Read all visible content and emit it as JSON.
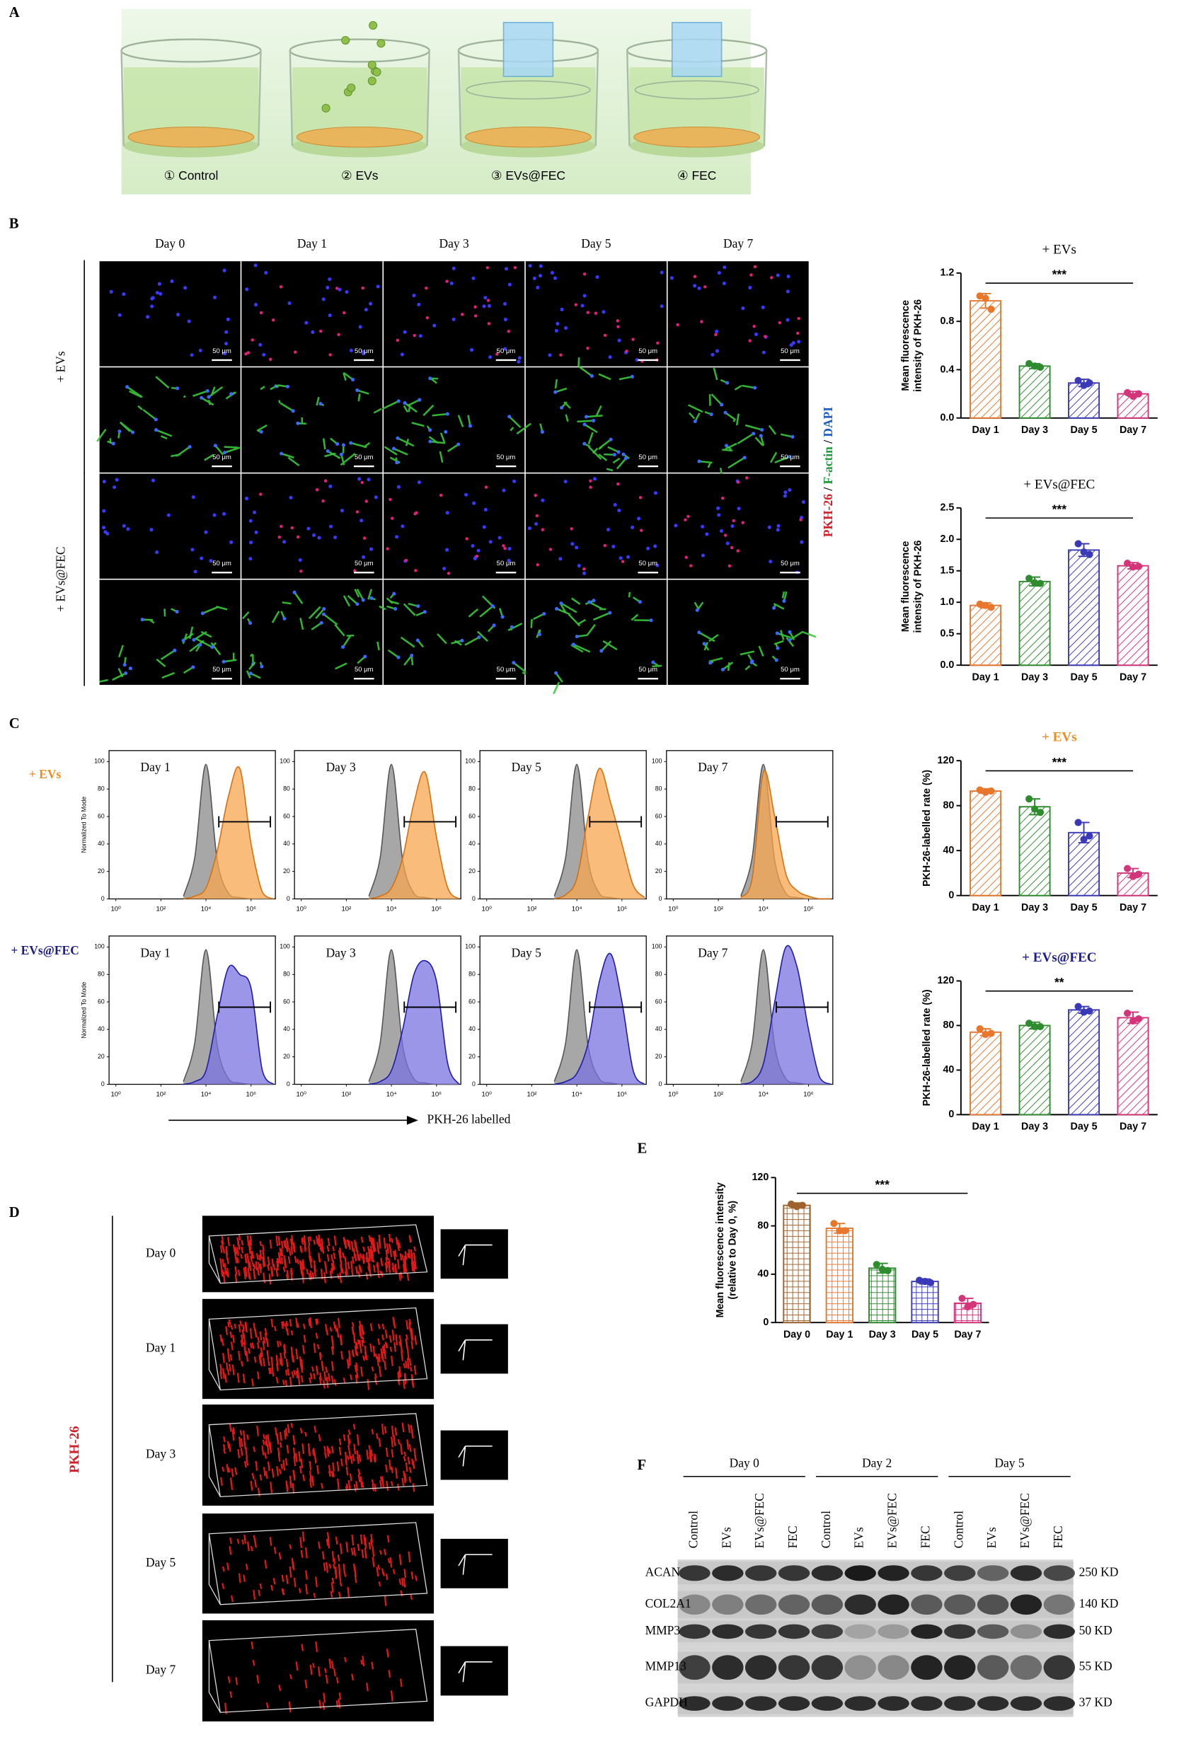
{
  "panel_labels": [
    "A",
    "B",
    "C",
    "D",
    "E",
    "F"
  ],
  "panel_a": {
    "groups": [
      "① Control",
      "② EVs",
      "③ EVs@FEC",
      "④ FEC"
    ]
  },
  "panel_b": {
    "days": [
      "Day 0",
      "Day 1",
      "Day 3",
      "Day 5",
      "Day 7"
    ],
    "rows": [
      "+ EVs",
      "+ EVs@FEC"
    ],
    "stain": [
      "PKH-26",
      "F-actin",
      "DAPI"
    ],
    "separator": " / ",
    "scale_bar": "50 μm"
  },
  "panel_c": {
    "rows": [
      "+ EVs",
      "+ EVs@FEC"
    ],
    "x_axis_label": "PKH-26 labelled"
  },
  "panel_d": {
    "label": "PKH-26",
    "days": [
      "Day 0",
      "Day 1",
      "Day 3",
      "Day 5",
      "Day 7"
    ]
  },
  "panel_f": {
    "groups": [
      "Day 0",
      "Day 2",
      "Day 5"
    ],
    "lanes": [
      "Control",
      "EVs",
      "EVs@FEC",
      "FEC"
    ],
    "proteins": [
      "ACAN",
      "COL2A1",
      "MMP3",
      "MMP13",
      "GAPDH"
    ],
    "sizes": [
      "250 KD",
      "140 KD",
      "50 KD",
      "55 KD",
      "37 KD"
    ]
  },
  "chart_data": [
    {
      "type": "bar",
      "title": "+ EVs",
      "title_color": "#000000",
      "y_label": [
        "Mean fluorescence",
        "intensity of PKH-26"
      ],
      "categories": [
        "Day 1",
        "Day 3",
        "Day 5",
        "Day 7"
      ],
      "values": [
        0.97,
        0.43,
        0.29,
        0.2
      ],
      "errors": [
        0.06,
        0.02,
        0.03,
        0.02
      ],
      "points": [
        [
          1.01,
          0.99,
          0.9
        ],
        [
          0.45,
          0.43,
          0.42
        ],
        [
          0.31,
          0.27,
          0.29
        ],
        [
          0.21,
          0.18,
          0.2
        ]
      ],
      "colors": [
        "#e8772e",
        "#2e8b2e",
        "#3a3ab8",
        "#d4347a"
      ],
      "ylim": [
        0,
        1.2
      ],
      "yticks": [
        {
          "value": 0,
          "label": "0.0"
        },
        0.4,
        0.8,
        1.2
      ],
      "significance": "***"
    },
    {
      "type": "bar",
      "title": "+ EVs@FEC",
      "title_color": "#000000",
      "y_label": [
        "Mean fluorescence",
        "intensity of PKH-26"
      ],
      "categories": [
        "Day 1",
        "Day 3",
        "Day 5",
        "Day 7"
      ],
      "values": [
        0.95,
        1.33,
        1.83,
        1.58
      ],
      "errors": [
        0.04,
        0.07,
        0.1,
        0.05
      ],
      "points": [
        [
          0.97,
          0.95,
          0.92
        ],
        [
          1.38,
          1.31,
          1.3
        ],
        [
          1.93,
          1.8,
          1.76
        ],
        [
          1.62,
          1.56,
          1.57
        ]
      ],
      "colors": [
        "#e8772e",
        "#2e8b2e",
        "#3a3ab8",
        "#d4347a"
      ],
      "ylim": [
        0,
        2.5
      ],
      "yticks": [
        {
          "value": 0,
          "label": "0.0"
        },
        0.5,
        {
          "value": 1,
          "label": "1.0"
        },
        1.5,
        {
          "value": 2,
          "label": "2.0"
        },
        2.5
      ],
      "significance": "***"
    },
    {
      "type": "bar",
      "title": "+ EVs",
      "title_color": "#f08c1e",
      "y_label": [
        "PKH-26-labelled rate (%)"
      ],
      "categories": [
        "Day 1",
        "Day 3",
        "Day 5",
        "Day 7"
      ],
      "values": [
        93,
        79,
        56,
        20
      ],
      "errors": [
        2,
        7,
        9,
        4
      ],
      "points": [
        [
          94,
          92,
          93
        ],
        [
          86,
          77,
          74
        ],
        [
          65,
          50,
          53
        ],
        [
          24,
          17,
          19
        ]
      ],
      "colors": [
        "#e8772e",
        "#2e8b2e",
        "#3a3ab8",
        "#d4347a"
      ],
      "ylim": [
        0,
        120
      ],
      "yticks": [
        0,
        40,
        80,
        120
      ],
      "significance": "***"
    },
    {
      "type": "bar",
      "title": "+ EVs@FEC",
      "title_color": "#1c1c8c",
      "y_label": [
        "PKH-26-labelled rate (%)"
      ],
      "categories": [
        "Day 1",
        "Day 3",
        "Day 5",
        "Day 7"
      ],
      "values": [
        74,
        80,
        94,
        87
      ],
      "errors": [
        3,
        3,
        3,
        5
      ],
      "points": [
        [
          77,
          72,
          73
        ],
        [
          82,
          79,
          79
        ],
        [
          97,
          92,
          93
        ],
        [
          91,
          84,
          86
        ]
      ],
      "colors": [
        "#e8772e",
        "#2e8b2e",
        "#3a3ab8",
        "#d4347a"
      ],
      "ylim": [
        0,
        120
      ],
      "yticks": [
        0,
        40,
        80,
        120
      ],
      "significance": "**"
    },
    {
      "type": "bar",
      "y_label": [
        "Mean fluorescence intensity",
        "(relative to Day 0, %)"
      ],
      "categories": [
        "Day 0",
        "Day 1",
        "Day 3",
        "Day 5",
        "Day 7"
      ],
      "values": [
        97,
        78,
        45,
        34,
        16
      ],
      "errors": [
        2,
        4,
        4,
        2,
        4
      ],
      "points": [
        [
          98,
          96,
          97
        ],
        [
          82,
          76,
          76
        ],
        [
          48,
          44,
          43
        ],
        [
          35,
          34,
          33
        ],
        [
          20,
          13,
          15
        ]
      ],
      "colors": [
        "#a0622d",
        "#e8772e",
        "#2e8b2e",
        "#3a3ab8",
        "#d4347a"
      ],
      "ylim": [
        0,
        120
      ],
      "yticks": [
        0,
        40,
        80,
        120
      ],
      "significance": "***"
    },
    {
      "type": "area",
      "label": "Day 1",
      "y_label": "Normalized To Mode",
      "log_x": true,
      "x": [
        1000,
        3162,
        10000,
        31623,
        100000,
        316228,
        1000000,
        3162278,
        10000000
      ],
      "series": [
        {
          "color": "#8a8a8a",
          "values": [
            2,
            30,
            98,
            28,
            4,
            1,
            0,
            0,
            0
          ]
        },
        {
          "color": "#f7a64f",
          "values": [
            0,
            2,
            8,
            35,
            75,
            95,
            40,
            5,
            0
          ]
        }
      ],
      "xlim": [
        0.5,
        12000000
      ],
      "xticks": [
        {
          "value": 1,
          "label": "10⁰"
        },
        {
          "value": 100,
          "label": "10²"
        },
        {
          "value": 10000,
          "label": "10⁴"
        },
        {
          "value": 1000000,
          "label": "10⁶"
        }
      ],
      "ylim": [
        0,
        108
      ],
      "yticks": [
        0,
        20,
        40,
        60,
        80,
        100
      ]
    },
    {
      "type": "area",
      "label": "Day 3",
      "log_x": true,
      "x": [
        1000,
        3162,
        10000,
        31623,
        100000,
        316228,
        1000000,
        3162278,
        10000000
      ],
      "series": [
        {
          "color": "#8a8a8a",
          "values": [
            2,
            30,
            98,
            28,
            4,
            1,
            0,
            0,
            0
          ]
        },
        {
          "color": "#f7a64f",
          "values": [
            0,
            2,
            8,
            30,
            70,
            92,
            45,
            8,
            0
          ]
        }
      ],
      "xlim": [
        0.5,
        12000000
      ],
      "xticks": [
        {
          "value": 1,
          "label": "10⁰"
        },
        {
          "value": 100,
          "label": "10²"
        },
        {
          "value": 10000,
          "label": "10⁴"
        },
        {
          "value": 1000000,
          "label": "10⁶"
        }
      ],
      "ylim": [
        0,
        108
      ],
      "yticks": [
        0,
        20,
        40,
        60,
        80,
        100
      ]
    },
    {
      "type": "area",
      "label": "Day 5",
      "log_x": true,
      "x": [
        1000,
        3162,
        10000,
        31623,
        100000,
        316228,
        1000000,
        3162278,
        10000000
      ],
      "series": [
        {
          "color": "#8a8a8a",
          "values": [
            2,
            30,
            98,
            28,
            4,
            1,
            0,
            0,
            0
          ]
        },
        {
          "color": "#f7a64f",
          "values": [
            0,
            3,
            15,
            60,
            95,
            70,
            40,
            10,
            1
          ]
        }
      ],
      "xlim": [
        0.5,
        12000000
      ],
      "xticks": [
        {
          "value": 1,
          "label": "10⁰"
        },
        {
          "value": 100,
          "label": "10²"
        },
        {
          "value": 10000,
          "label": "10⁴"
        },
        {
          "value": 1000000,
          "label": "10⁶"
        }
      ],
      "ylim": [
        0,
        108
      ],
      "yticks": [
        0,
        20,
        40,
        60,
        80,
        100
      ]
    },
    {
      "type": "area",
      "label": "Day 7",
      "log_x": true,
      "x": [
        1000,
        3162,
        10000,
        31623,
        100000,
        316228,
        1000000,
        3162278,
        10000000
      ],
      "series": [
        {
          "color": "#8a8a8a",
          "values": [
            2,
            30,
            98,
            28,
            4,
            1,
            0,
            0,
            0
          ]
        },
        {
          "color": "#f7a64f",
          "values": [
            1,
            15,
            92,
            60,
            18,
            6,
            2,
            0,
            0
          ]
        }
      ],
      "xlim": [
        0.5,
        12000000
      ],
      "xticks": [
        {
          "value": 1,
          "label": "10⁰"
        },
        {
          "value": 100,
          "label": "10²"
        },
        {
          "value": 10000,
          "label": "10⁴"
        },
        {
          "value": 1000000,
          "label": "10⁶"
        }
      ],
      "ylim": [
        0,
        108
      ],
      "yticks": [
        0,
        20,
        40,
        60,
        80,
        100
      ]
    },
    {
      "type": "area",
      "label": "Day 1",
      "y_label": "Normalized To Mode",
      "log_x": true,
      "x": [
        1000,
        3162,
        10000,
        31623,
        100000,
        316228,
        1000000,
        3162278,
        10000000
      ],
      "series": [
        {
          "color": "#8a8a8a",
          "values": [
            2,
            30,
            98,
            28,
            4,
            1,
            0,
            0,
            0
          ]
        },
        {
          "color": "#7b73e0",
          "values": [
            0,
            2,
            10,
            50,
            85,
            80,
            70,
            10,
            0
          ]
        }
      ],
      "xlim": [
        0.5,
        12000000
      ],
      "xticks": [
        {
          "value": 1,
          "label": "10⁰"
        },
        {
          "value": 100,
          "label": "10²"
        },
        {
          "value": 10000,
          "label": "10⁴"
        },
        {
          "value": 1000000,
          "label": "10⁶"
        }
      ],
      "ylim": [
        0,
        108
      ],
      "yticks": [
        0,
        20,
        40,
        60,
        80,
        100
      ]
    },
    {
      "type": "area",
      "label": "Day 3",
      "log_x": true,
      "x": [
        1000,
        3162,
        10000,
        31623,
        100000,
        316228,
        1000000,
        3162278,
        10000000
      ],
      "series": [
        {
          "color": "#8a8a8a",
          "values": [
            2,
            30,
            98,
            28,
            4,
            1,
            0,
            0,
            0
          ]
        },
        {
          "color": "#7b73e0",
          "values": [
            0,
            2,
            10,
            40,
            80,
            90,
            75,
            15,
            0
          ]
        }
      ],
      "xlim": [
        0.5,
        12000000
      ],
      "xticks": [
        {
          "value": 1,
          "label": "10⁰"
        },
        {
          "value": 100,
          "label": "10²"
        },
        {
          "value": 10000,
          "label": "10⁴"
        },
        {
          "value": 1000000,
          "label": "10⁶"
        }
      ],
      "ylim": [
        0,
        108
      ],
      "yticks": [
        0,
        20,
        40,
        60,
        80,
        100
      ]
    },
    {
      "type": "area",
      "label": "Day 5",
      "log_x": true,
      "x": [
        1000,
        3162,
        10000,
        31623,
        100000,
        316228,
        1000000,
        3162278,
        10000000
      ],
      "series": [
        {
          "color": "#8a8a8a",
          "values": [
            2,
            30,
            98,
            28,
            4,
            1,
            0,
            0,
            0
          ]
        },
        {
          "color": "#7b73e0",
          "values": [
            0,
            2,
            8,
            30,
            75,
            95,
            60,
            10,
            0
          ]
        }
      ],
      "xlim": [
        0.5,
        12000000
      ],
      "xticks": [
        {
          "value": 1,
          "label": "10⁰"
        },
        {
          "value": 100,
          "label": "10²"
        },
        {
          "value": 10000,
          "label": "10⁴"
        },
        {
          "value": 1000000,
          "label": "10⁶"
        }
      ],
      "ylim": [
        0,
        108
      ],
      "yticks": [
        0,
        20,
        40,
        60,
        80,
        100
      ]
    },
    {
      "type": "area",
      "label": "Day 7",
      "log_x": true,
      "x": [
        1000,
        3162,
        10000,
        31623,
        100000,
        316228,
        1000000,
        3162278,
        10000000
      ],
      "series": [
        {
          "color": "#8a8a8a",
          "values": [
            2,
            30,
            98,
            28,
            4,
            1,
            0,
            0,
            0
          ]
        },
        {
          "color": "#7b73e0",
          "values": [
            0,
            2,
            15,
            60,
            100,
            85,
            40,
            5,
            0
          ]
        }
      ],
      "xlim": [
        0.5,
        12000000
      ],
      "xticks": [
        {
          "value": 1,
          "label": "10⁰"
        },
        {
          "value": 100,
          "label": "10²"
        },
        {
          "value": 10000,
          "label": "10⁴"
        },
        {
          "value": 1000000,
          "label": "10⁶"
        }
      ],
      "ylim": [
        0,
        108
      ],
      "yticks": [
        0,
        20,
        40,
        60,
        80,
        100
      ]
    }
  ]
}
